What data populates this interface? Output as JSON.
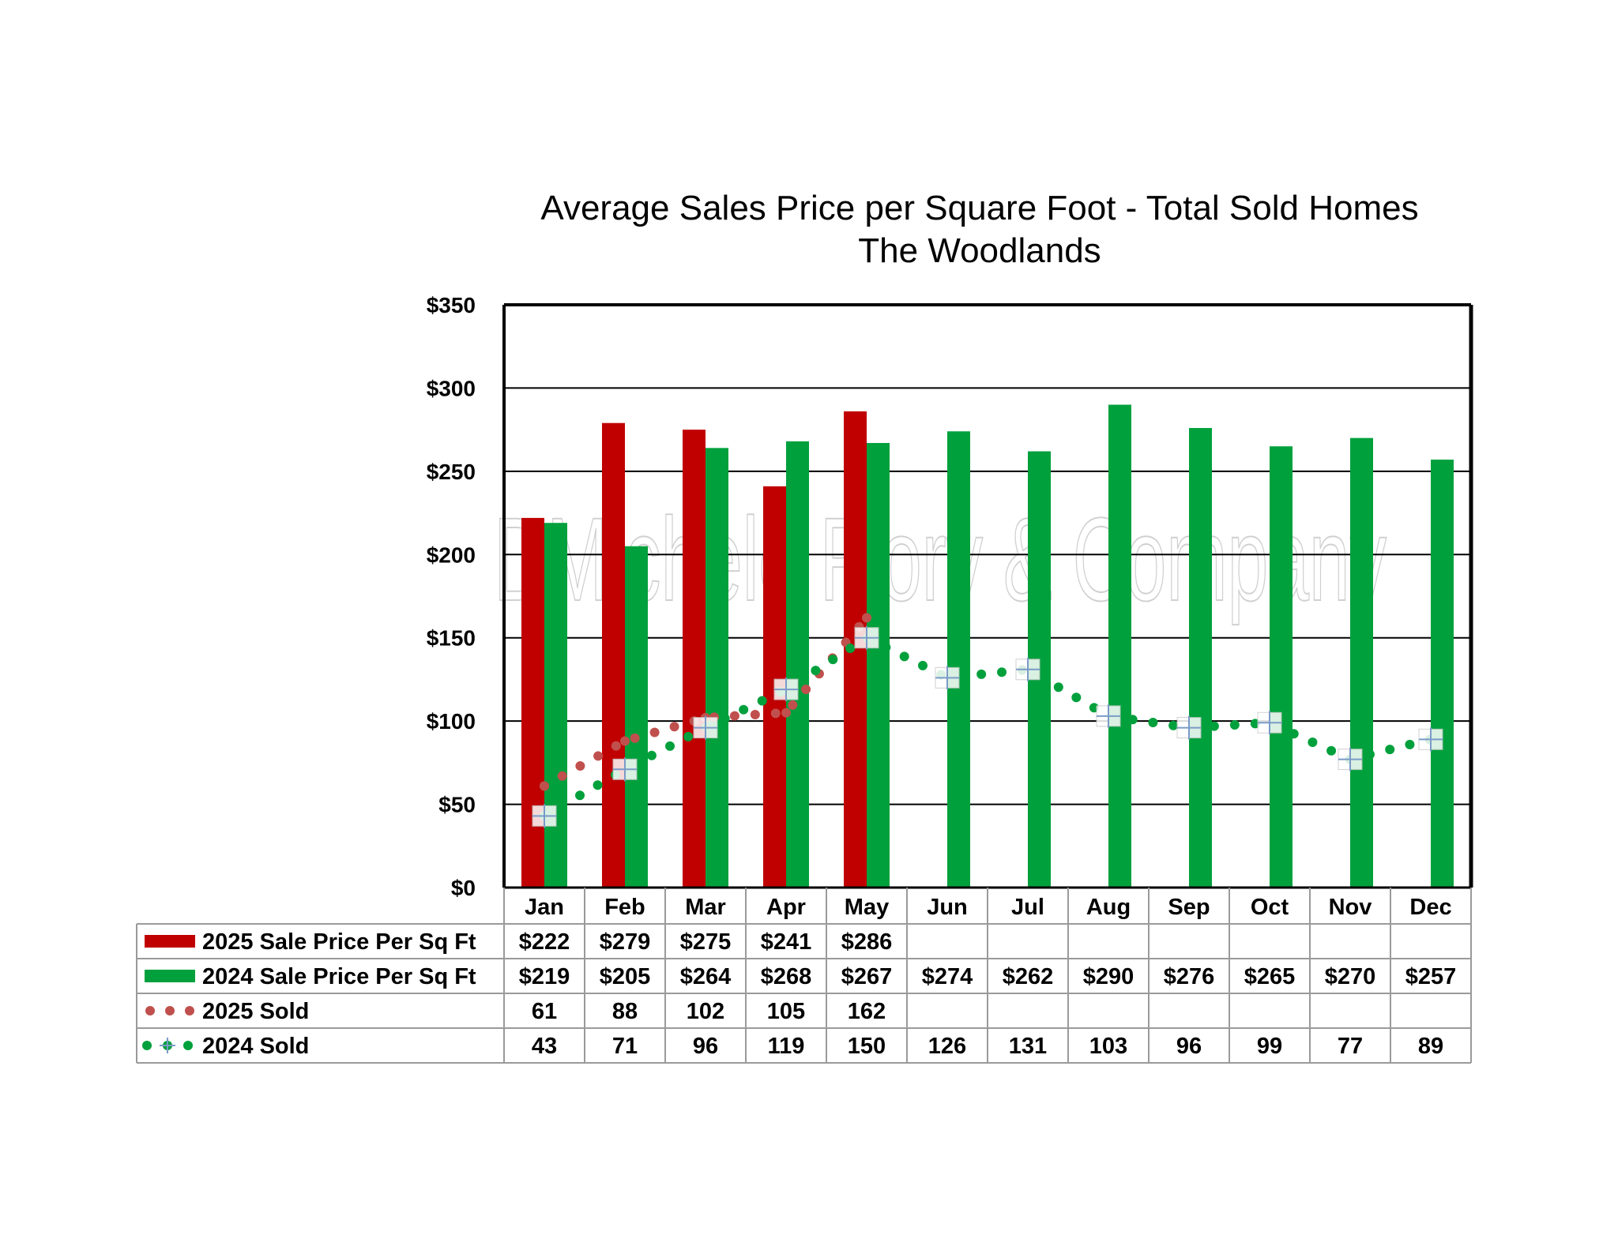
{
  "chart_data": {
    "type": "bar",
    "title": "Average Sales Price per Square Foot - Total Sold Homes",
    "subtitle": "The Woodlands",
    "watermark": "DMichele Flory & Company",
    "categories": [
      "Jan",
      "Feb",
      "Mar",
      "Apr",
      "May",
      "Jun",
      "Jul",
      "Aug",
      "Sep",
      "Oct",
      "Nov",
      "Dec"
    ],
    "ylim": [
      0,
      350
    ],
    "y_ticks": [
      0,
      50,
      100,
      150,
      200,
      250,
      300,
      350
    ],
    "y_tick_labels": [
      "$0",
      "$50",
      "$100",
      "$150",
      "$200",
      "$250",
      "$300",
      "$350"
    ],
    "grid": true,
    "legend_placement": "data-table-below",
    "series": [
      {
        "name": "2025 Sale Price Per Sq Ft",
        "kind": "bar",
        "color": "#c00000",
        "values": [
          222,
          279,
          275,
          241,
          286,
          null,
          null,
          null,
          null,
          null,
          null,
          null
        ],
        "labels": [
          "$222",
          "$279",
          "$275",
          "$241",
          "$286",
          "",
          "",
          "",
          "",
          "",
          "",
          ""
        ]
      },
      {
        "name": "2024 Sale Price Per Sq Ft",
        "kind": "bar",
        "color": "#00a03c",
        "values": [
          219,
          205,
          264,
          268,
          267,
          274,
          262,
          290,
          276,
          265,
          270,
          257
        ],
        "labels": [
          "$219",
          "$205",
          "$264",
          "$268",
          "$267",
          "$274",
          "$262",
          "$290",
          "$276",
          "$265",
          "$270",
          "$257"
        ]
      },
      {
        "name": "2025 Sold",
        "kind": "dotted-line",
        "color": "#c0504d",
        "values": [
          61,
          88,
          102,
          105,
          162,
          null,
          null,
          null,
          null,
          null,
          null,
          null
        ],
        "labels": [
          "61",
          "88",
          "102",
          "105",
          "162",
          "",
          "",
          "",
          "",
          "",
          "",
          ""
        ]
      },
      {
        "name": "2024 Sold",
        "kind": "dotted-line-with-markers",
        "color": "#00a03c",
        "values": [
          43,
          71,
          96,
          119,
          150,
          126,
          131,
          103,
          96,
          99,
          77,
          89
        ],
        "labels": [
          "43",
          "71",
          "96",
          "119",
          "150",
          "126",
          "131",
          "103",
          "96",
          "99",
          "77",
          "89"
        ]
      }
    ]
  }
}
